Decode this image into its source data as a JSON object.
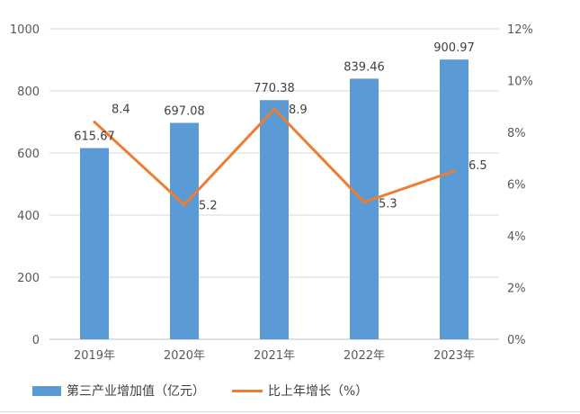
{
  "chart_data": {
    "type": "bar",
    "categories": [
      "2019年",
      "2020年",
      "2021年",
      "2022年",
      "2023年"
    ],
    "series": [
      {
        "name": "第三产业增加值（亿元）",
        "type": "bar",
        "axis": "left",
        "values": [
          615.67,
          697.08,
          770.38,
          839.46,
          900.97
        ],
        "labels": [
          "615.67",
          "697.08",
          "770.38",
          "839.46",
          "900.97"
        ],
        "color": "#5b9bd5"
      },
      {
        "name": "比上年增长（%）",
        "type": "line",
        "axis": "right",
        "values": [
          8.4,
          5.2,
          8.9,
          5.3,
          6.5
        ],
        "labels": [
          "8.4",
          "5.2",
          "8.9",
          "5.3",
          "6.5"
        ],
        "color": "#ed7d31"
      }
    ],
    "y_left": {
      "range": [
        0,
        1000
      ],
      "ticks": [
        "0",
        "200",
        "400",
        "600",
        "800",
        "1000"
      ]
    },
    "y_right": {
      "range": [
        0,
        12
      ],
      "ticks": [
        "0%",
        "2%",
        "4%",
        "6%",
        "8%",
        "10%",
        "12%"
      ]
    },
    "grid": true,
    "legend": "bottom"
  }
}
